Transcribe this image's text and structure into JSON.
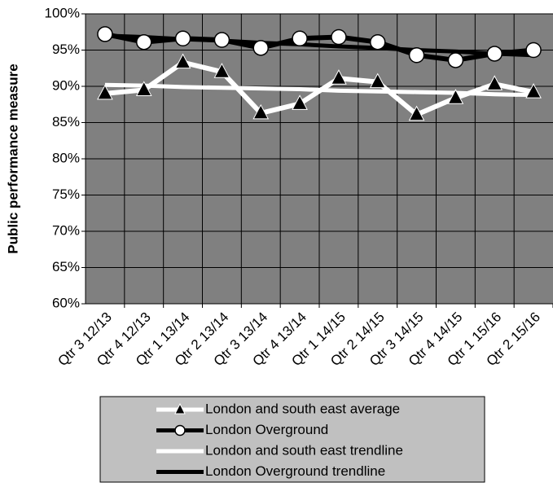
{
  "chart_data": {
    "type": "line",
    "y_label": "Public performance measure",
    "categories": [
      "Qtr 3 12/13",
      "Qtr 4 12/13",
      "Qtr 1 13/14",
      "Qtr 2 13/14",
      "Qtr 3 13/14",
      "Qtr 4 13/14",
      "Qtr 1 14/15",
      "Qtr 2 14/15",
      "Qtr 3 14/15",
      "Qtr 4 14/15",
      "Qtr 1 15/16",
      "Qtr 2 15/16"
    ],
    "series": [
      {
        "name": "London and south east average",
        "color": "#ffffff",
        "marker": "triangle",
        "values": [
          89.0,
          89.5,
          93.3,
          92.0,
          86.3,
          87.6,
          91.1,
          90.6,
          86.1,
          88.4,
          90.3,
          89.2
        ]
      },
      {
        "name": "London Overground",
        "color": "#000000",
        "marker": "circle",
        "values": [
          97.2,
          96.1,
          96.6,
          96.4,
          95.3,
          96.6,
          96.8,
          96.1,
          94.3,
          93.6,
          94.5,
          95.0
        ]
      },
      {
        "name": "London and south east trendline",
        "color": "#ffffff",
        "marker": "none",
        "values": [
          90.2,
          90.1,
          89.9,
          89.8,
          89.7,
          89.6,
          89.4,
          89.3,
          89.2,
          89.1,
          88.9,
          88.8
        ]
      },
      {
        "name": "London Overground trendline",
        "color": "#000000",
        "marker": "none",
        "values": [
          97.0,
          96.8,
          96.5,
          96.3,
          96.0,
          95.8,
          95.5,
          95.3,
          95.0,
          94.8,
          94.5,
          94.3
        ]
      }
    ],
    "ylim": [
      60,
      100
    ],
    "yticks": [
      {
        "value": 60,
        "label": "60%"
      },
      {
        "value": 65,
        "label": "65%"
      },
      {
        "value": 70,
        "label": "70%"
      },
      {
        "value": 75,
        "label": "75%"
      },
      {
        "value": 80,
        "label": "80%"
      },
      {
        "value": 85,
        "label": "85%"
      },
      {
        "value": 90,
        "label": "90%"
      },
      {
        "value": 95,
        "label": "95%"
      },
      {
        "value": 100,
        "label": "100%"
      }
    ],
    "grid": true,
    "plot_background": "#808080",
    "legend_position": "bottom"
  }
}
